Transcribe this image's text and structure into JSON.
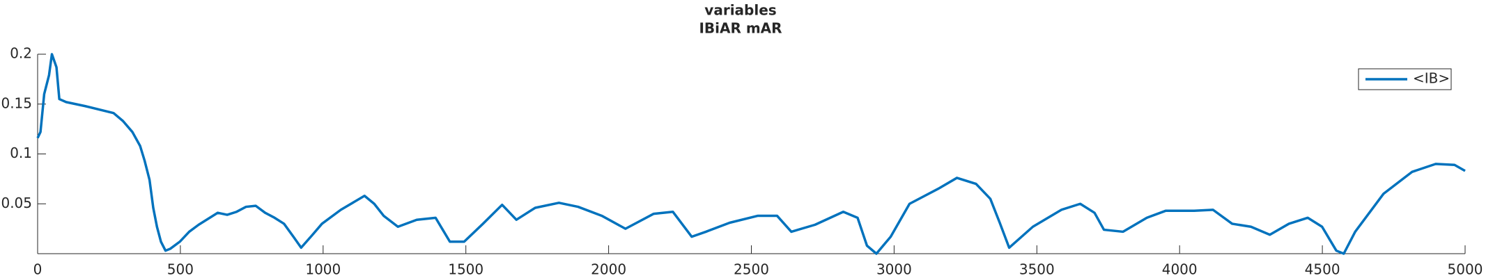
{
  "chart_data": {
    "type": "line",
    "title": "variables",
    "subtitle": "IBiAR mAR",
    "x": [
      0,
      10,
      23,
      40,
      50,
      66,
      76,
      100,
      166,
      266,
      299,
      332,
      359,
      375,
      392,
      405,
      418,
      432,
      448,
      465,
      498,
      531,
      564,
      631,
      664,
      697,
      730,
      764,
      797,
      830,
      863,
      896,
      923,
      963,
      996,
      1062,
      1145,
      1179,
      1212,
      1262,
      1328,
      1394,
      1444,
      1494,
      1560,
      1627,
      1677,
      1743,
      1826,
      1893,
      1976,
      2059,
      2158,
      2225,
      2291,
      2341,
      2424,
      2523,
      2590,
      2640,
      2723,
      2822,
      2872,
      2905,
      2938,
      2988,
      3054,
      3154,
      3220,
      3287,
      3337,
      3370,
      3403,
      3486,
      3586,
      3652,
      3702,
      3735,
      3802,
      3885,
      3951,
      4051,
      4117,
      4184,
      4250,
      4316,
      4383,
      4449,
      4499,
      4549,
      4575,
      4615,
      4714,
      4814,
      4897,
      4963,
      5000
    ],
    "series": [
      {
        "name": "<IB>",
        "color": "#0072BD",
        "values": [
          0.116,
          0.122,
          0.16,
          0.179,
          0.2,
          0.187,
          0.155,
          0.152,
          0.148,
          0.141,
          0.133,
          0.122,
          0.108,
          0.093,
          0.074,
          0.046,
          0.027,
          0.012,
          0.003,
          0.005,
          0.012,
          0.022,
          0.029,
          0.041,
          0.039,
          0.042,
          0.047,
          0.048,
          0.041,
          0.036,
          0.03,
          0.017,
          0.006,
          0.019,
          0.03,
          0.044,
          0.058,
          0.05,
          0.038,
          0.027,
          0.034,
          0.036,
          0.012,
          0.012,
          0.03,
          0.049,
          0.034,
          0.046,
          0.051,
          0.047,
          0.038,
          0.025,
          0.04,
          0.042,
          0.017,
          0.022,
          0.031,
          0.038,
          0.038,
          0.022,
          0.029,
          0.042,
          0.036,
          0.008,
          0,
          0.017,
          0.05,
          0.065,
          0.076,
          0.07,
          0.055,
          0.031,
          0.006,
          0.027,
          0.044,
          0.05,
          0.041,
          0.024,
          0.022,
          0.036,
          0.043,
          0.043,
          0.044,
          0.03,
          0.027,
          0.019,
          0.03,
          0.036,
          0.027,
          0.003,
          0,
          0.022,
          0.06,
          0.082,
          0.09,
          0.089,
          0.083
        ]
      }
    ],
    "xlim": [
      0,
      5000
    ],
    "xticks": [
      0,
      500,
      1000,
      1500,
      2000,
      2500,
      3000,
      3500,
      4000,
      4500,
      5000
    ],
    "ylim": [
      0,
      0.2
    ],
    "yticks": [
      0.05,
      0.1,
      0.15,
      0.2
    ],
    "grid": false,
    "legend": "upper right"
  }
}
